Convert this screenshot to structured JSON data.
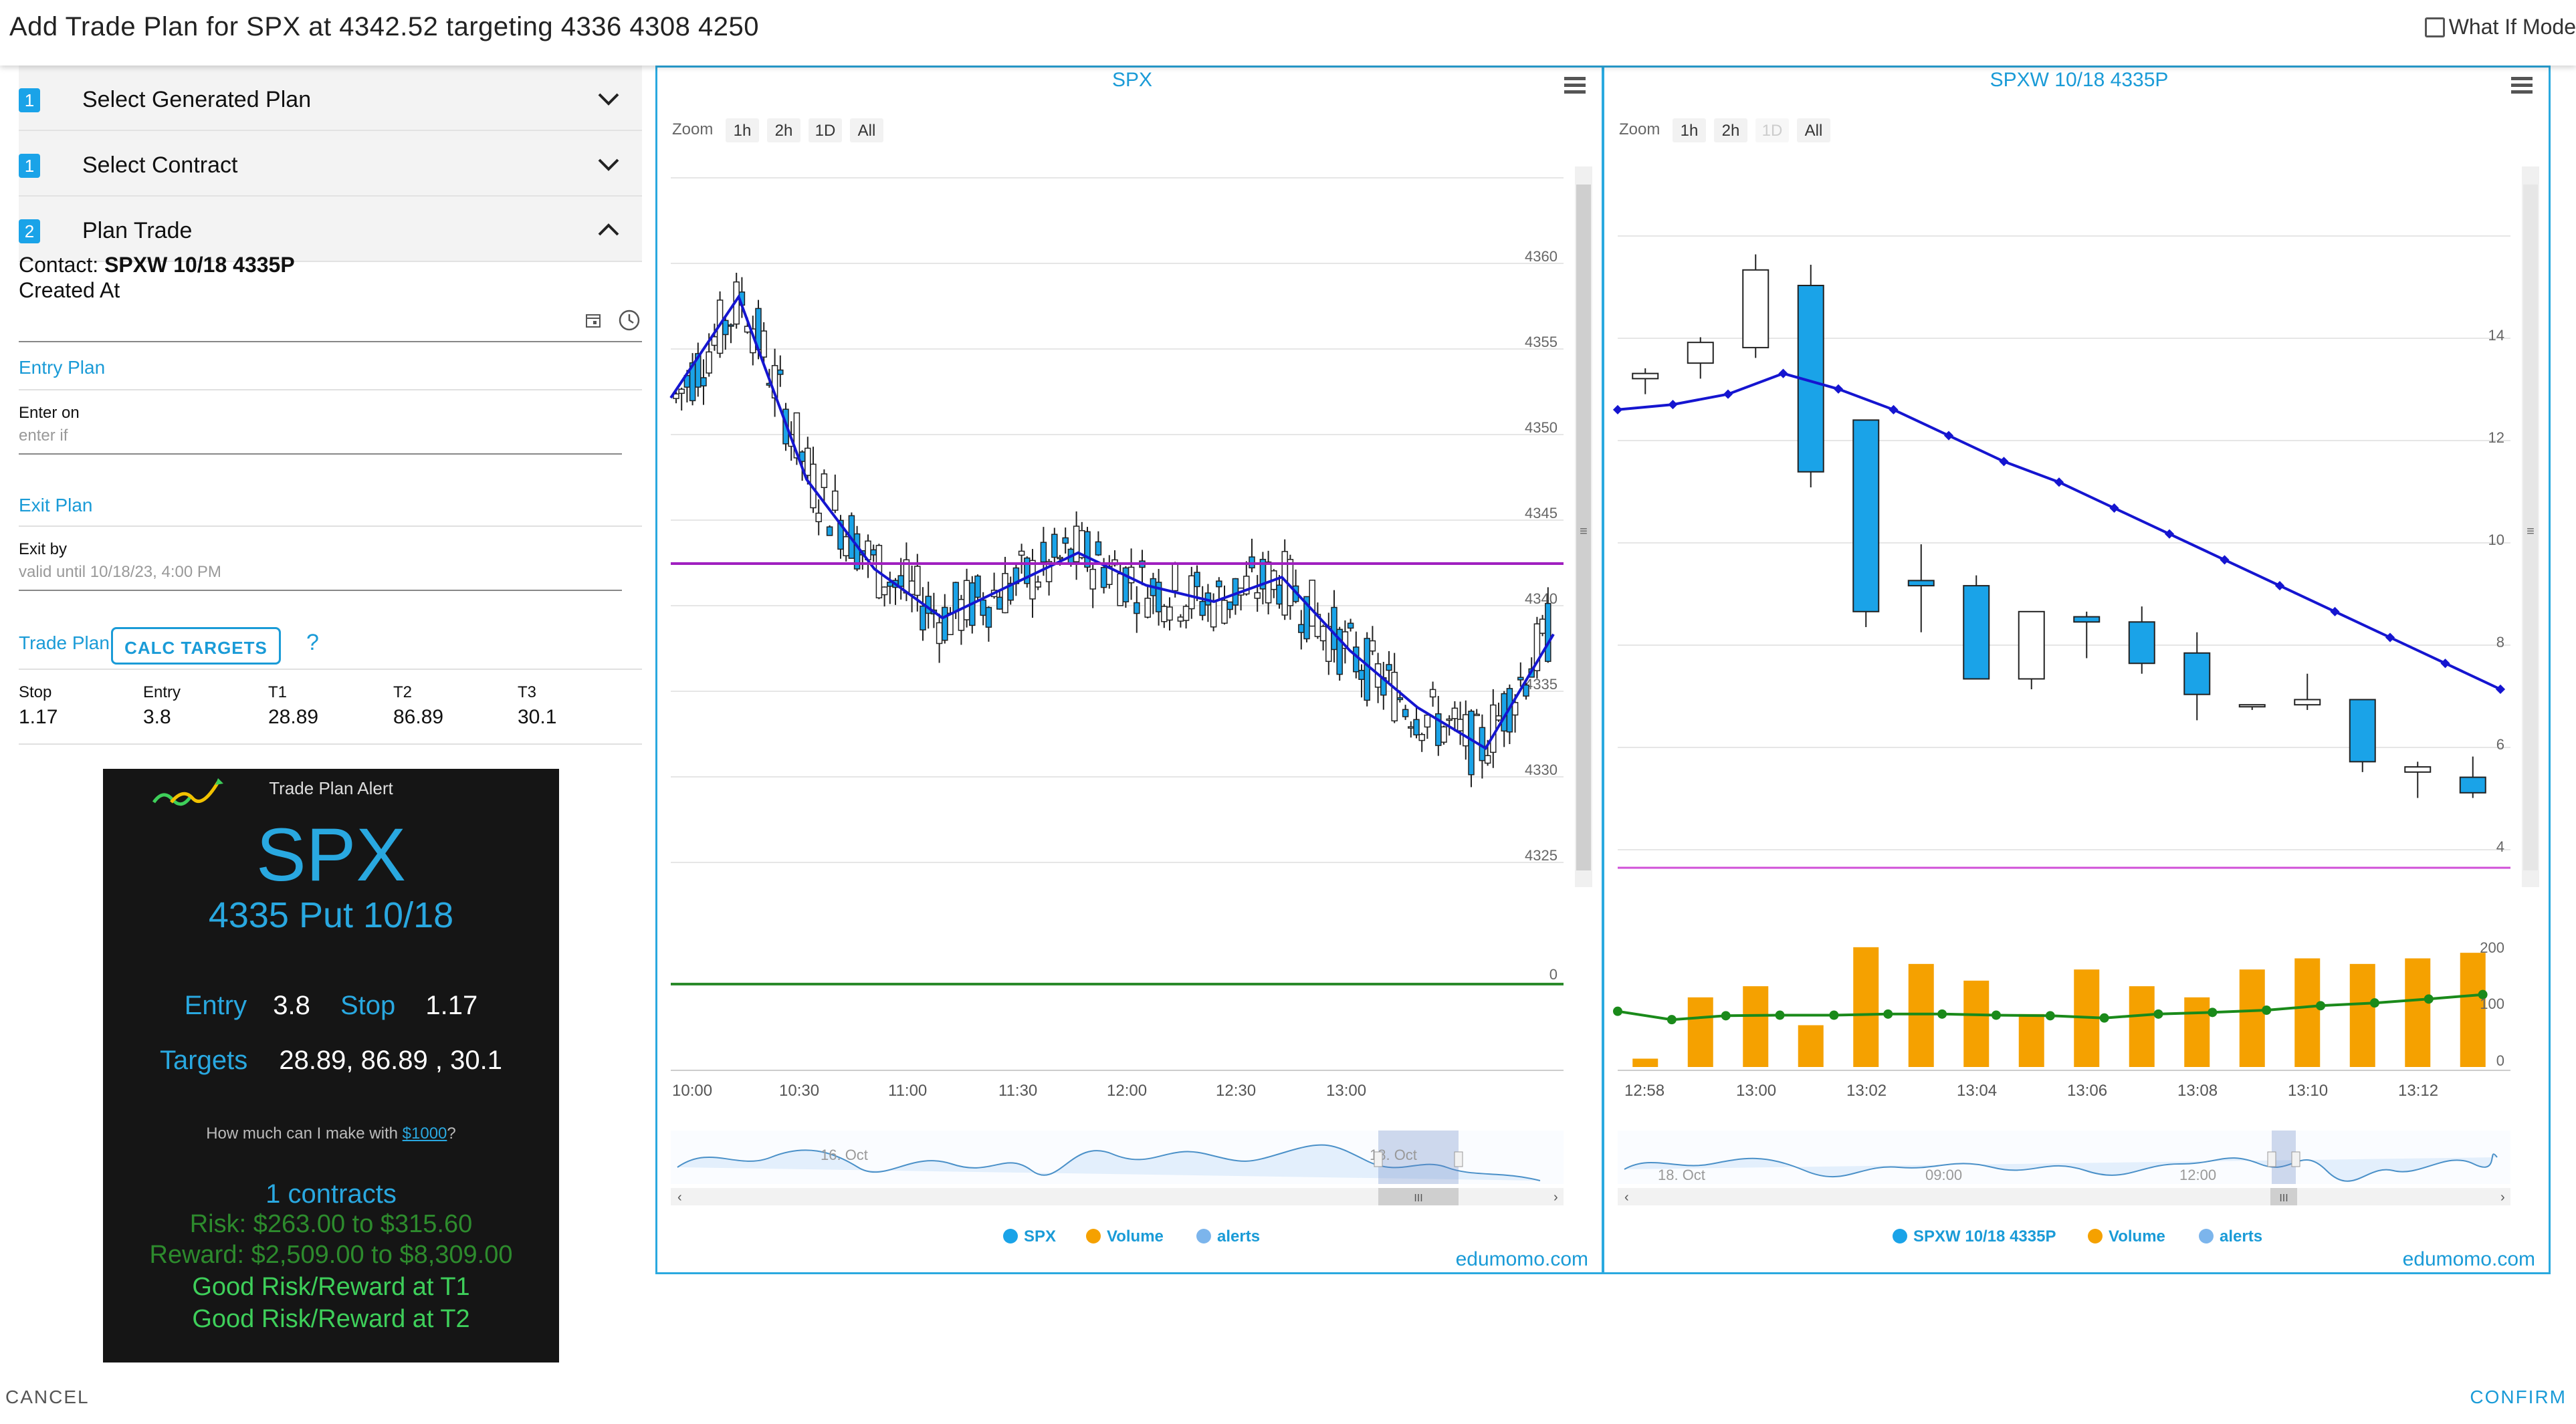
{
  "header": {
    "title": "Add Trade Plan for SPX at 4342.52 targeting 4336 4308 4250",
    "what_if_label": "What If Mode"
  },
  "steps": [
    {
      "num": "1",
      "label": "Select Generated Plan"
    },
    {
      "num": "1",
      "label": "Select Contract"
    },
    {
      "num": "2",
      "label": "Plan Trade"
    }
  ],
  "plan": {
    "contact_label": "Contact:",
    "contact_value": "SPXW 10/18 4335P",
    "created_at_label": "Created At",
    "entry_plan_label": "Entry Plan",
    "enter_on_label": "Enter on",
    "enter_on_placeholder": "enter if",
    "exit_plan_label": "Exit Plan",
    "exit_by_label": "Exit by",
    "exit_by_value": "valid until 10/18/23, 4:00 PM",
    "trade_plan_label": "Trade Plan",
    "calc_targets_label": "CALC TARGETS",
    "help_label": "?",
    "table_headers": [
      "Stop",
      "Entry",
      "T1",
      "T2",
      "T3"
    ],
    "table_values": [
      "1.17",
      "3.8",
      "28.89",
      "86.89",
      "30.1"
    ]
  },
  "alert": {
    "header": "Trade Plan Alert",
    "symbol": "SPX",
    "contract": "4335 Put 10/18",
    "entry_label": "Entry",
    "entry_value": "3.8",
    "stop_label": "Stop",
    "stop_value": "1.17",
    "targets_label": "Targets",
    "targets_value": "28.89, 86.89 , 30.1",
    "make_text": "How much can I make with ",
    "make_link": "$1000",
    "make_suffix": "?",
    "contracts": "1 contracts",
    "risk": "Risk: $263.00 to $315.60",
    "reward": "Reward: $2,509.00 to $8,309.00",
    "good1": "Good Risk/Reward at T1",
    "good2": "Good Risk/Reward at T2",
    "colors": {
      "blue": "#29a8e0",
      "green": "#2d8b2d",
      "bright_green": "#3ecf5a"
    }
  },
  "charts": {
    "zoom_label": "Zoom",
    "zoom_buttons": [
      "1h",
      "2h",
      "1D",
      "All"
    ],
    "credit": "edumomo.com",
    "spx": {
      "title": "SPX",
      "y_ticks": [
        "4360",
        "4355",
        "4350",
        "4345",
        "4340",
        "4335",
        "4330",
        "4325"
      ],
      "volume_tick": "0",
      "x_ticks": [
        "10:00",
        "10:30",
        "11:00",
        "11:30",
        "12:00",
        "12:30",
        "13:00"
      ],
      "nav_labels": [
        "16. Oct",
        "18. Oct"
      ],
      "legend": [
        "SPX",
        "Volume",
        "alerts"
      ]
    },
    "option": {
      "title": "SPXW 10/18 4335P",
      "y_ticks": [
        "14",
        "12",
        "10",
        "8",
        "6",
        "4"
      ],
      "volume_ticks": [
        "200",
        "100",
        "0"
      ],
      "x_ticks": [
        "12:58",
        "13:00",
        "13:02",
        "13:04",
        "13:06",
        "13:08",
        "13:10",
        "13:12"
      ],
      "nav_labels": [
        "18. Oct",
        "09:00",
        "12:00"
      ],
      "legend": [
        "SPXW 10/18 4335P",
        "Volume",
        "alerts"
      ]
    },
    "legend_colors": {
      "series": "#1aa3e8",
      "volume": "#f5a100",
      "alerts": "#7cb5ec"
    }
  },
  "chart_data": [
    {
      "type": "line",
      "title": "SPX",
      "x": [
        "10:00",
        "10:15",
        "10:30",
        "10:45",
        "11:00",
        "11:15",
        "11:30",
        "11:45",
        "12:00",
        "12:15",
        "12:30",
        "12:45",
        "13:00",
        "13:05"
      ],
      "series": [
        {
          "name": "SPX",
          "values": [
            4350.5,
            4356.7,
            4345.5,
            4340,
            4337,
            4339,
            4341,
            4339,
            4338,
            4339.5,
            4335,
            4331.5,
            4329,
            4336
          ]
        }
      ],
      "reference_lines": [
        {
          "value": 4342.5,
          "color": "#a020c0"
        }
      ],
      "ylim": [
        4322,
        4364
      ]
    },
    {
      "type": "line",
      "title": "SPXW 10/18 4335P",
      "x": [
        "12:57",
        "12:58",
        "12:59",
        "13:00",
        "13:01",
        "13:02",
        "13:03",
        "13:04",
        "13:05",
        "13:06",
        "13:07",
        "13:08",
        "13:09",
        "13:10",
        "13:11",
        "13:12",
        "13:13"
      ],
      "series": [
        {
          "name": "SPXW 10/18 4335P",
          "values": [
            12,
            12.1,
            12.3,
            12.7,
            12.4,
            12,
            11.5,
            11,
            10.6,
            10.1,
            9.6,
            9.1,
            8.6,
            8.1,
            7.6,
            7.1,
            6.6
          ]
        },
        {
          "name": "Volume",
          "values": [
            35,
            15,
            125,
            145,
            75,
            215,
            185,
            155,
            95,
            175,
            145,
            125,
            175,
            195,
            185,
            195,
            205
          ]
        }
      ],
      "ylim": [
        3.5,
        15
      ]
    }
  ]
}
